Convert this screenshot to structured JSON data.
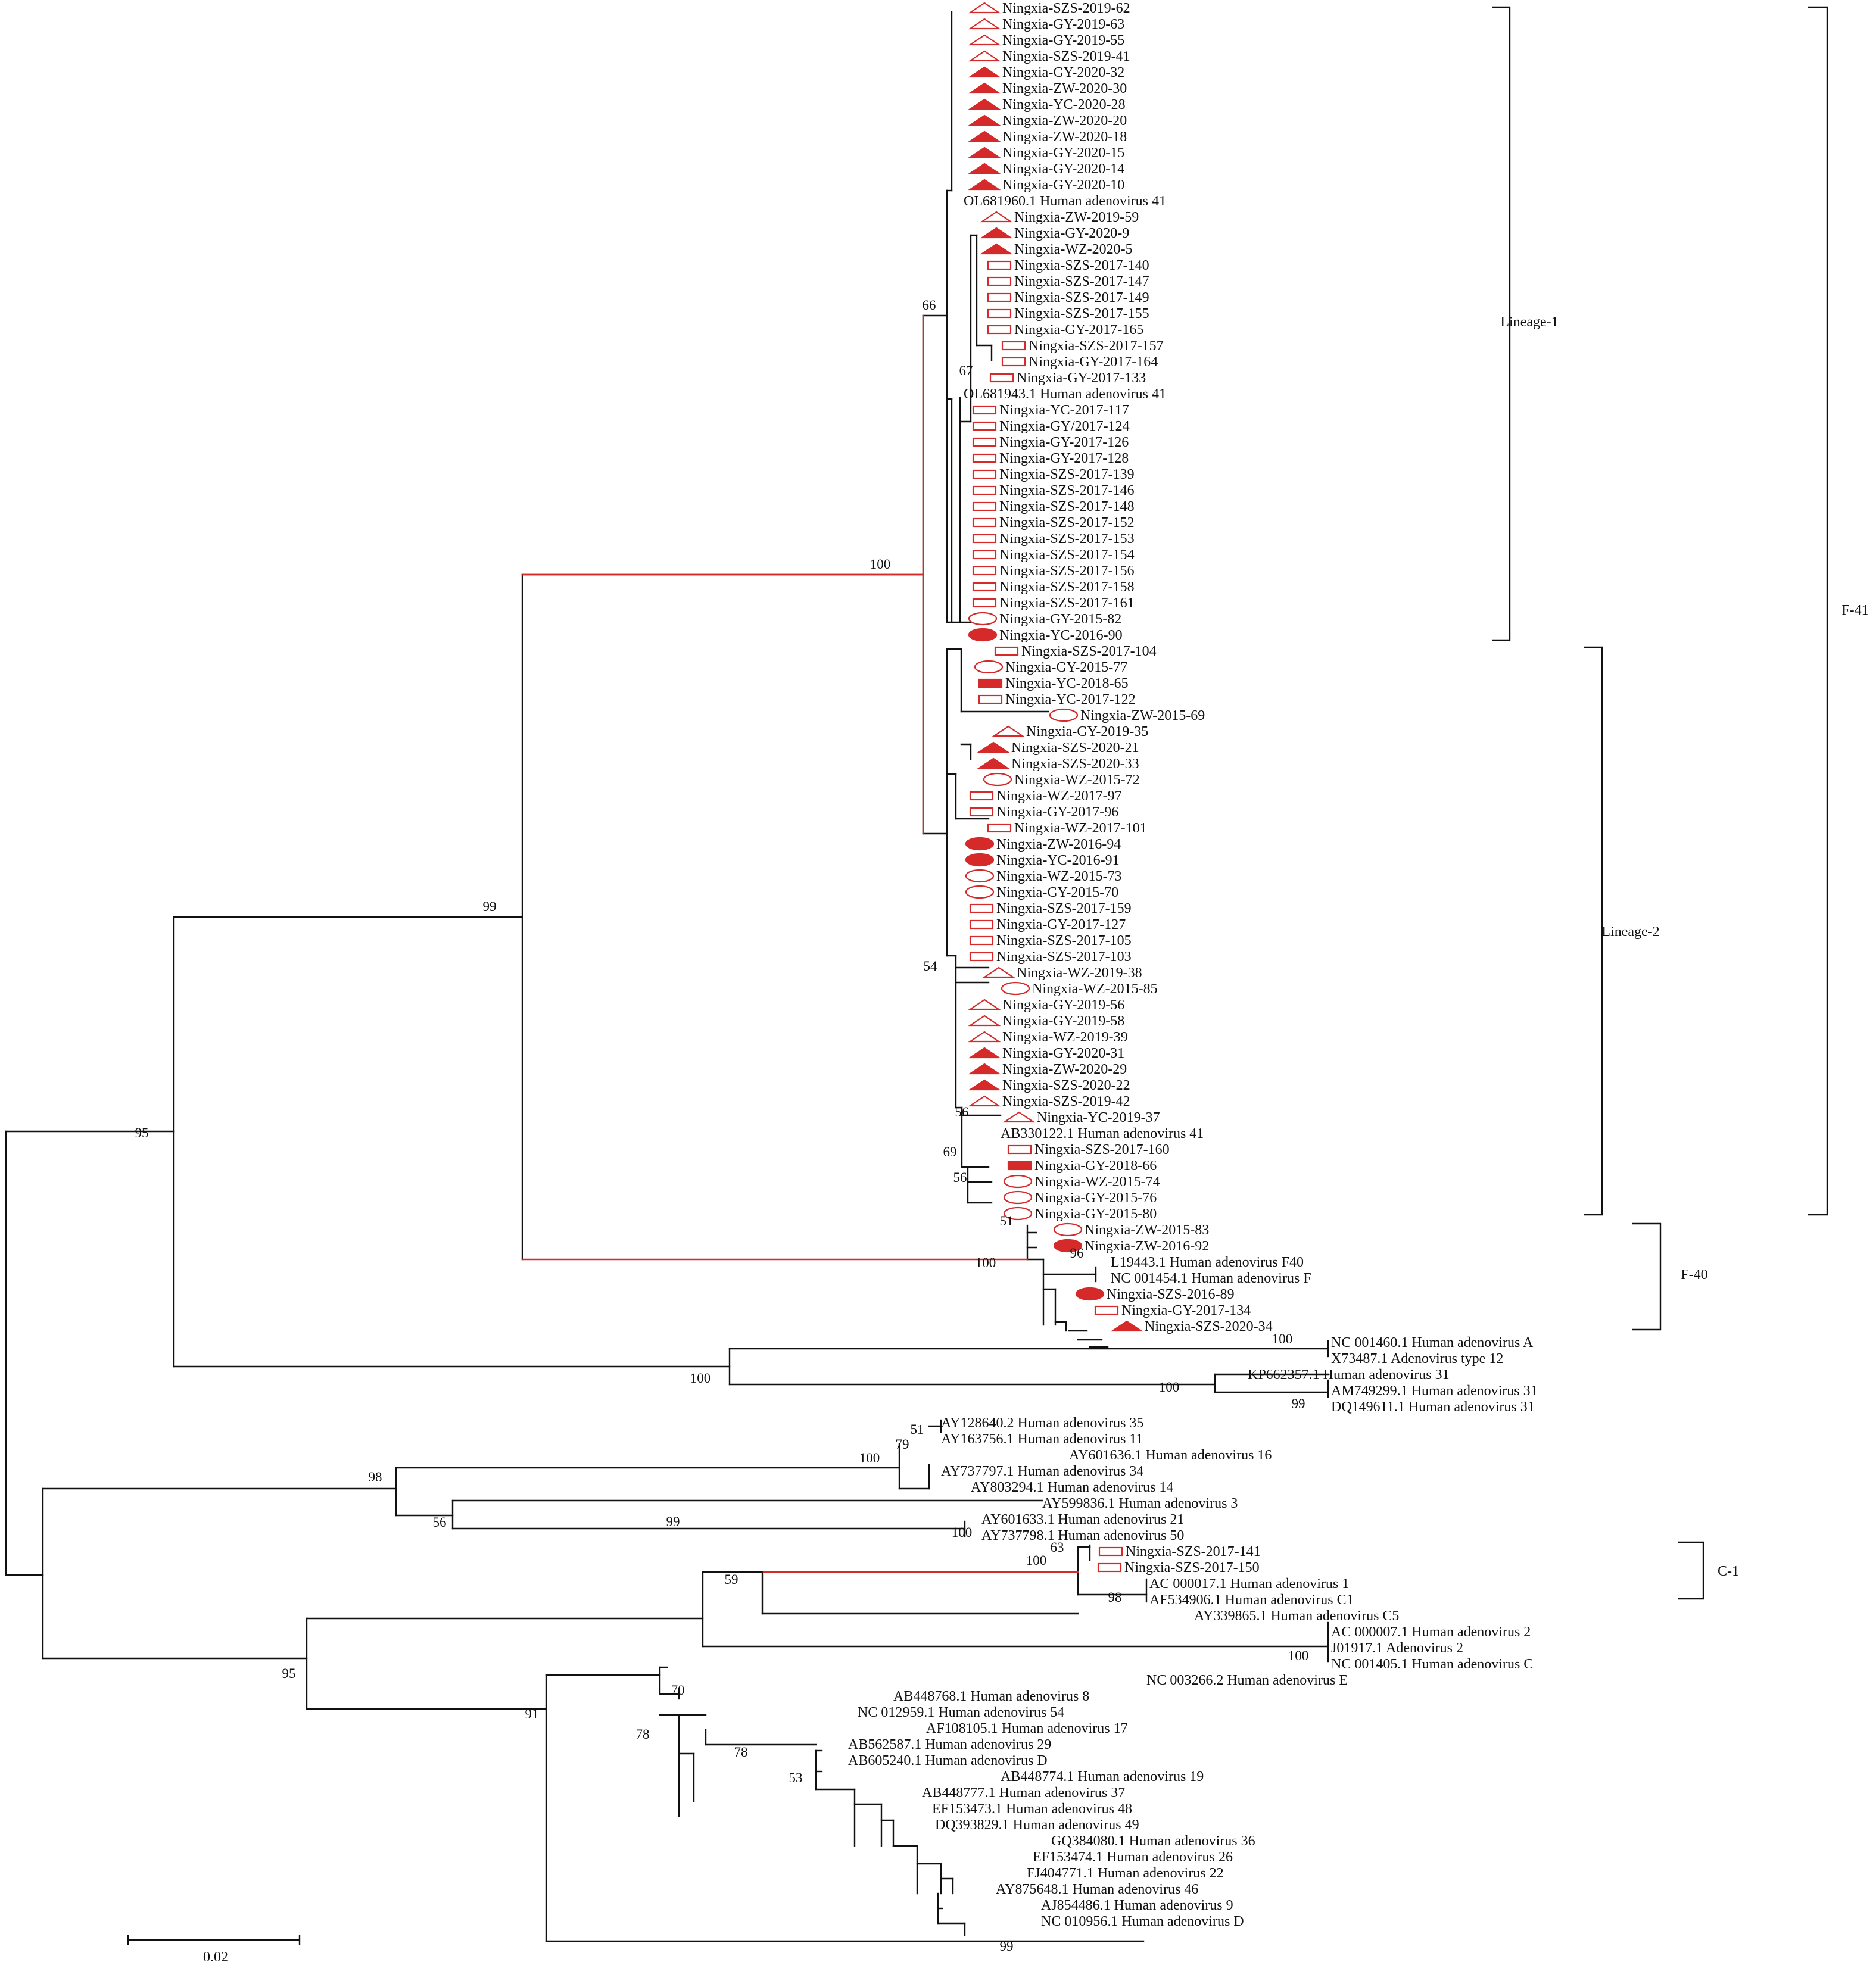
{
  "tree": {
    "scale_bar_label": "0.02",
    "clade_labels": {
      "lineage1": "Lineage-1",
      "lineage2": "Lineage-2",
      "f41": "F-41",
      "f40": "F-40",
      "c1": "C-1"
    },
    "leaf_labels": [
      "Ningxia-SZS-2019-62",
      "Ningxia-GY-2019-63",
      "Ningxia-GY-2019-55",
      "Ningxia-SZS-2019-41",
      "Ningxia-GY-2020-32",
      "Ningxia-ZW-2020-30",
      "Ningxia-YC-2020-28",
      "Ningxia-ZW-2020-20",
      "Ningxia-ZW-2020-18",
      "Ningxia-GY-2020-15",
      "Ningxia-GY-2020-14",
      "Ningxia-GY-2020-10",
      "OL681960.1 Human adenovirus 41",
      "Ningxia-ZW-2019-59",
      "Ningxia-GY-2020-9",
      "Ningxia-WZ-2020-5",
      "Ningxia-SZS-2017-140",
      "Ningxia-SZS-2017-147",
      "Ningxia-SZS-2017-149",
      "Ningxia-SZS-2017-155",
      "Ningxia-GY-2017-165",
      "Ningxia-SZS-2017-157",
      "Ningxia-GY-2017-164",
      "Ningxia-GY-2017-133",
      "OL681943.1 Human adenovirus 41",
      "Ningxia-YC-2017-117",
      "Ningxia-GY/2017-124",
      "Ningxia-GY-2017-126",
      "Ningxia-GY-2017-128",
      "Ningxia-SZS-2017-139",
      "Ningxia-SZS-2017-146",
      "Ningxia-SZS-2017-148",
      "Ningxia-SZS-2017-152",
      "Ningxia-SZS-2017-153",
      "Ningxia-SZS-2017-154",
      "Ningxia-SZS-2017-156",
      "Ningxia-SZS-2017-158",
      "Ningxia-SZS-2017-161",
      "Ningxia-GY-2015-82",
      "Ningxia-YC-2016-90",
      "Ningxia-SZS-2017-104",
      "Ningxia-GY-2015-77",
      "Ningxia-YC-2018-65",
      "Ningxia-YC-2017-122",
      "Ningxia-ZW-2015-69",
      "Ningxia-GY-2019-35",
      "Ningxia-SZS-2020-21",
      "Ningxia-SZS-2020-33",
      "Ningxia-WZ-2015-72",
      "Ningxia-WZ-2017-97",
      "Ningxia-GY-2017-96",
      "Ningxia-WZ-2017-101",
      "Ningxia-ZW-2016-94",
      "Ningxia-YC-2016-91",
      "Ningxia-WZ-2015-73",
      "Ningxia-GY-2015-70",
      "Ningxia-SZS-2017-159",
      "Ningxia-GY-2017-127",
      "Ningxia-SZS-2017-105",
      "Ningxia-SZS-2017-103",
      "Ningxia-WZ-2019-38",
      "Ningxia-WZ-2015-85",
      "Ningxia-GY-2019-56",
      "Ningxia-GY-2019-58",
      "Ningxia-WZ-2019-39",
      "Ningxia-GY-2020-31",
      "Ningxia-ZW-2020-29",
      "Ningxia-SZS-2020-22",
      "Ningxia-SZS-2019-42",
      "Ningxia-YC-2019-37",
      "AB330122.1 Human adenovirus 41",
      "Ningxia-SZS-2017-160",
      "Ningxia-GY-2018-66",
      "Ningxia-WZ-2015-74",
      "Ningxia-GY-2015-76",
      "Ningxia-GY-2015-80",
      "Ningxia-ZW-2015-83",
      "Ningxia-ZW-2016-92",
      "L19443.1 Human adenovirus F40",
      "NC 001454.1 Human adenovirus F",
      "Ningxia-SZS-2016-89",
      "Ningxia-GY-2017-134",
      "Ningxia-SZS-2020-34",
      "NC 001460.1 Human adenovirus A",
      "X73487.1 Adenovirus type 12",
      "KP662357.1 Human adenovirus 31",
      "AM749299.1 Human adenovirus 31",
      "DQ149611.1 Human adenovirus 31",
      "AY128640.2 Human adenovirus 35",
      "AY163756.1 Human adenovirus 11",
      "AY601636.1 Human adenovirus 16",
      "AY737797.1 Human adenovirus 34",
      "AY803294.1 Human adenovirus 14",
      "AY599836.1 Human adenovirus 3",
      "AY601633.1 Human adenovirus 21",
      "AY737798.1 Human adenovirus 50",
      "Ningxia-SZS-2017-141",
      "Ningxia-SZS-2017-150",
      "AC 000017.1 Human adenovirus 1",
      "AF534906.1 Human adenovirus C1",
      "AY339865.1 Human adenovirus C5",
      "AC 000007.1 Human adenovirus 2",
      "J01917.1 Adenovirus 2",
      "NC 001405.1 Human adenovirus C",
      "NC 003266.2 Human adenovirus E",
      "AB448768.1 Human adenovirus 8",
      "NC 012959.1 Human adenovirus 54",
      "AF108105.1 Human adenovirus 17",
      "AB562587.1 Human adenovirus 29",
      "AB605240.1 Human adenovirus D",
      "AB448774.1 Human adenovirus 19",
      "AB448777.1 Human adenovirus 37",
      "EF153473.1 Human adenovirus 48",
      "DQ393829.1 Human adenovirus 49",
      "GQ384080.1 Human adenovirus 36",
      "EF153474.1 Human adenovirus 26",
      "FJ404771.1 Human adenovirus 22",
      "AY875648.1 Human adenovirus 46",
      "AJ854486.1 Human adenovirus 9",
      "NC 010956.1 Human adenovirus D"
    ],
    "bootstrap_labels": [
      "95",
      "99",
      "100",
      "66",
      "67",
      "54",
      "56",
      "69",
      "56",
      "51",
      "100",
      "96",
      "100",
      "100",
      "100",
      "99",
      "98",
      "100",
      "79",
      "51",
      "56",
      "100",
      "99",
      "59",
      "63",
      "100",
      "98",
      "100",
      "95",
      "91",
      "70",
      "78",
      "78",
      "53",
      "99"
    ]
  }
}
